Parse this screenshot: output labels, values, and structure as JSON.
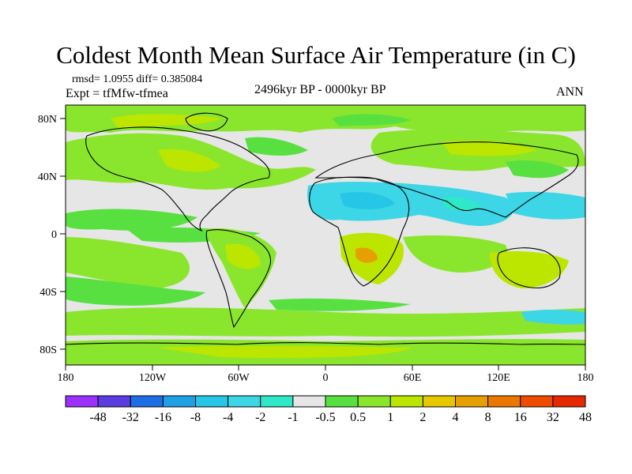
{
  "title": "Coldest Month Mean Surface Air Temperature (in C)",
  "stats_line": "rmsd= 1.0955  diff= 0.385084",
  "experiment": "Expt = tfMfw-tfmea",
  "period": "2496kyr BP - 0000kyr BP",
  "season": "ANN",
  "axes": {
    "lat_labels": [
      "80N",
      "40N",
      "0",
      "40S",
      "80S"
    ],
    "lon_labels": [
      "180",
      "120W",
      "60W",
      "0",
      "60E",
      "120E",
      "180"
    ]
  },
  "colorbar": {
    "labels": [
      "-48",
      "-32",
      "-16",
      "-8",
      "-4",
      "-2",
      "-1",
      "-0.5",
      "0.5",
      "1",
      "2",
      "4",
      "8",
      "16",
      "32",
      "48"
    ],
    "colors": [
      "#9b30ff",
      "#5a3ce0",
      "#1e6ee6",
      "#1ea0e6",
      "#26c6e6",
      "#3cd6e6",
      "#2ee8c8",
      "#e6e6e6",
      "#58e040",
      "#8ae62c",
      "#bce600",
      "#e6c800",
      "#e6a000",
      "#ea7800",
      "#ee4c00",
      "#e62800"
    ]
  },
  "colors": {
    "land_outline": "#000000",
    "near_zero": "#e6e6e6",
    "warm_small": "#58e040",
    "warm_mid": "#8ae62c",
    "cool_small": "#2ee8c8",
    "cool_mid": "#3cd6e6"
  }
}
